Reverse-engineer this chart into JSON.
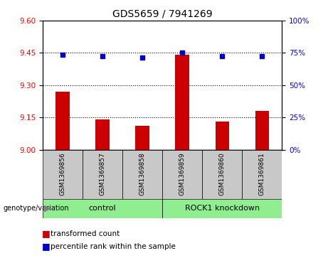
{
  "title": "GDS5659 / 7941269",
  "samples": [
    "GSM1369856",
    "GSM1369857",
    "GSM1369858",
    "GSM1369859",
    "GSM1369860",
    "GSM1369861"
  ],
  "red_values": [
    9.27,
    9.14,
    9.11,
    9.44,
    9.13,
    9.18
  ],
  "blue_percentiles": [
    73.5,
    72.5,
    71.5,
    75.0,
    72.5,
    72.5
  ],
  "ylim_left": [
    9.0,
    9.6
  ],
  "ylim_right": [
    0,
    100
  ],
  "yticks_left": [
    9.0,
    9.15,
    9.3,
    9.45,
    9.6
  ],
  "yticks_right": [
    0,
    25,
    50,
    75,
    100
  ],
  "hlines": [
    9.15,
    9.3,
    9.45
  ],
  "groups": [
    {
      "label": "control",
      "indices": [
        0,
        1,
        2
      ],
      "color": "#90EE90"
    },
    {
      "label": "ROCK1 knockdown",
      "indices": [
        3,
        4,
        5
      ],
      "color": "#90EE90"
    }
  ],
  "bar_color": "#CC0000",
  "dot_color": "#0000CC",
  "bar_width": 0.35,
  "bg_color_samples": "#C8C8C8",
  "title_fontsize": 10,
  "tick_fontsize": 7.5,
  "label_fontsize": 8,
  "legend_fontsize": 7.5,
  "sample_fontsize": 6.5,
  "genotype_label": "genotype/variation",
  "legend_items": [
    "transformed count",
    "percentile rank within the sample"
  ]
}
